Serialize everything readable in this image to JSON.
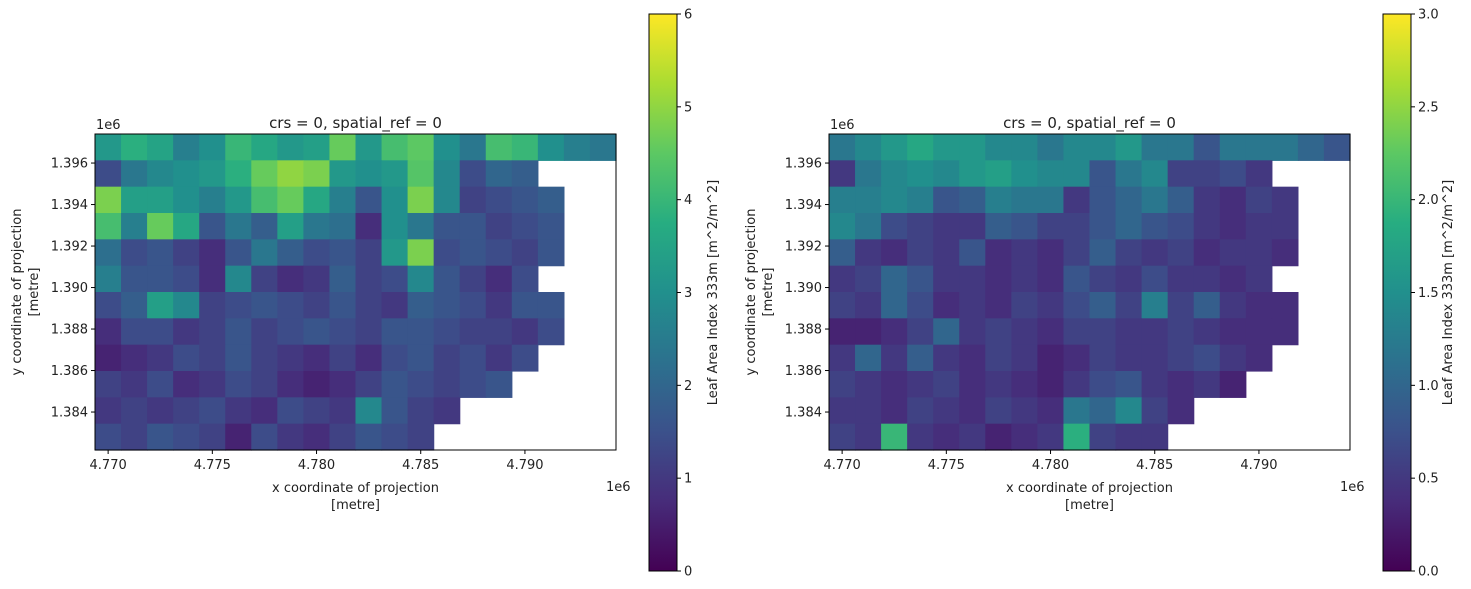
{
  "chart_data": [
    {
      "type": "heatmap",
      "title": "crs = 0, spatial_ref = 0",
      "xlabel": "x coordinate of projection\n[metre]",
      "xlabel_lines": [
        "x coordinate of projection",
        "[metre]"
      ],
      "ylabel_lines": [
        "y coordinate of projection",
        "[metre]"
      ],
      "x_offset_label": "1e6",
      "y_offset_label": "1e6",
      "xlim": [
        4.76937,
        4.79437
      ],
      "ylim": [
        1.38217,
        1.3974
      ],
      "xticks": [
        "4.770",
        "4.775",
        "4.780",
        "4.785",
        "4.790"
      ],
      "xtick_values": [
        4.77,
        4.775,
        4.78,
        4.785,
        4.79
      ],
      "yticks": [
        "1.384",
        "1.386",
        "1.388",
        "1.390",
        "1.392",
        "1.394",
        "1.396"
      ],
      "ytick_values": [
        1.384,
        1.386,
        1.388,
        1.39,
        1.392,
        1.394,
        1.396
      ],
      "colormap": "viridis",
      "colorbar": {
        "label": "Leaf Area Index 333m [m^2/m^2]",
        "range": [
          0,
          6
        ],
        "ticks": [
          "0",
          "1",
          "2",
          "3",
          "4",
          "5",
          "6"
        ],
        "tick_values": [
          0,
          1,
          2,
          3,
          4,
          5,
          6
        ]
      },
      "nan_color": "#ffffff",
      "grid": [
        [
          3.2,
          3.8,
          3.5,
          2.6,
          3.0,
          4.0,
          3.6,
          3.2,
          3.4,
          4.6,
          3.2,
          4.2,
          4.5,
          3.0,
          2.4,
          4.2,
          4.0,
          3.0,
          2.6,
          2.4
        ],
        [
          1.4,
          2.4,
          2.8,
          3.0,
          3.2,
          3.8,
          4.6,
          5.0,
          4.8,
          3.2,
          3.0,
          3.2,
          4.4,
          2.8,
          1.4,
          2.0,
          1.8,
          null,
          null,
          null
        ],
        [
          4.8,
          3.4,
          3.4,
          3.0,
          2.6,
          3.2,
          4.2,
          4.6,
          3.6,
          2.6,
          1.6,
          3.0,
          4.8,
          2.8,
          1.2,
          1.4,
          1.6,
          1.8,
          null,
          null
        ],
        [
          4.2,
          2.6,
          4.6,
          3.6,
          1.6,
          2.4,
          1.8,
          3.4,
          2.4,
          2.2,
          0.8,
          3.0,
          2.4,
          1.6,
          1.6,
          1.2,
          1.4,
          1.6,
          null,
          null
        ],
        [
          2.2,
          1.4,
          1.6,
          1.2,
          0.8,
          1.6,
          2.4,
          1.8,
          1.4,
          1.6,
          1.2,
          3.2,
          4.8,
          1.4,
          1.6,
          1.4,
          1.2,
          1.6,
          null,
          null
        ],
        [
          2.6,
          1.6,
          1.6,
          1.4,
          0.8,
          2.8,
          1.2,
          0.8,
          1.0,
          1.8,
          1.2,
          1.4,
          2.8,
          1.6,
          1.2,
          0.8,
          1.4,
          null,
          null,
          null
        ],
        [
          1.4,
          1.8,
          3.4,
          2.8,
          1.2,
          1.4,
          1.6,
          1.4,
          1.2,
          1.6,
          1.2,
          1.0,
          1.8,
          1.6,
          1.4,
          1.0,
          1.6,
          1.6,
          null,
          null
        ],
        [
          0.8,
          1.4,
          1.4,
          1.0,
          1.2,
          1.6,
          1.2,
          1.4,
          1.6,
          1.4,
          1.2,
          1.6,
          1.6,
          1.4,
          1.2,
          1.2,
          1.0,
          1.4,
          null,
          null
        ],
        [
          0.6,
          0.8,
          1.0,
          1.4,
          1.2,
          1.6,
          1.2,
          1.0,
          0.8,
          1.2,
          0.8,
          1.4,
          1.6,
          1.2,
          1.4,
          1.0,
          1.4,
          null,
          null,
          null
        ],
        [
          1.2,
          1.0,
          1.4,
          0.8,
          1.0,
          1.4,
          1.2,
          0.8,
          0.6,
          0.8,
          1.2,
          1.6,
          1.4,
          1.2,
          1.4,
          1.6,
          null,
          null,
          null,
          null
        ],
        [
          1.0,
          1.2,
          1.0,
          1.2,
          1.4,
          1.0,
          0.8,
          1.4,
          1.2,
          1.0,
          2.8,
          1.6,
          1.2,
          1.0,
          null,
          null,
          null,
          null,
          null,
          null
        ],
        [
          1.4,
          1.2,
          1.6,
          1.4,
          1.2,
          0.6,
          1.4,
          1.0,
          0.8,
          1.2,
          1.6,
          1.4,
          1.2,
          null,
          null,
          null,
          null,
          null,
          null,
          null
        ]
      ]
    },
    {
      "type": "heatmap",
      "title": "crs = 0, spatial_ref = 0",
      "xlabel_lines": [
        "x coordinate of projection",
        "[metre]"
      ],
      "ylabel_lines": [
        "y coordinate of projection",
        "[metre]"
      ],
      "x_offset_label": "1e6",
      "y_offset_label": "1e6",
      "xlim": [
        4.76937,
        4.79437
      ],
      "ylim": [
        1.38217,
        1.3974
      ],
      "xticks": [
        "4.770",
        "4.775",
        "4.780",
        "4.785",
        "4.790"
      ],
      "xtick_values": [
        4.77,
        4.775,
        4.78,
        4.785,
        4.79
      ],
      "yticks": [
        "1.384",
        "1.386",
        "1.388",
        "1.390",
        "1.392",
        "1.394",
        "1.396"
      ],
      "ytick_values": [
        1.384,
        1.386,
        1.388,
        1.39,
        1.392,
        1.394,
        1.396
      ],
      "colormap": "viridis",
      "colorbar": {
        "label": "Leaf Area Index 333m [m^2/m^2]",
        "range": [
          0,
          3
        ],
        "ticks": [
          "0.0",
          "0.5",
          "1.0",
          "1.5",
          "2.0",
          "2.5",
          "3.0"
        ],
        "tick_values": [
          0,
          0.5,
          1.0,
          1.5,
          2.0,
          2.5,
          3.0
        ]
      },
      "nan_color": "#ffffff",
      "grid": [
        [
          1.2,
          1.4,
          1.6,
          1.8,
          1.6,
          1.6,
          1.4,
          1.4,
          1.2,
          1.4,
          1.4,
          1.6,
          1.2,
          1.2,
          0.8,
          1.2,
          1.2,
          1.2,
          1.0,
          0.8
        ],
        [
          0.5,
          1.2,
          1.4,
          1.5,
          1.4,
          1.6,
          1.7,
          1.5,
          1.4,
          1.4,
          0.8,
          1.2,
          1.4,
          0.6,
          0.6,
          0.7,
          0.5,
          null,
          null,
          null
        ],
        [
          1.3,
          1.3,
          1.4,
          1.3,
          0.8,
          0.9,
          1.3,
          1.2,
          1.2,
          0.5,
          0.8,
          1.0,
          1.2,
          0.9,
          0.5,
          0.4,
          0.6,
          0.5,
          null,
          null
        ],
        [
          1.4,
          1.2,
          0.7,
          0.6,
          0.5,
          0.5,
          0.9,
          0.8,
          0.6,
          0.6,
          0.8,
          1.0,
          0.8,
          0.7,
          0.5,
          0.4,
          0.5,
          0.5,
          null,
          null
        ],
        [
          0.9,
          0.5,
          0.4,
          0.6,
          0.5,
          0.8,
          0.4,
          0.5,
          0.4,
          0.6,
          0.9,
          0.6,
          0.5,
          0.6,
          0.4,
          0.5,
          0.5,
          0.4,
          null,
          null
        ],
        [
          0.5,
          0.6,
          1.0,
          0.8,
          0.5,
          0.5,
          0.4,
          0.5,
          0.4,
          0.8,
          0.6,
          0.5,
          0.7,
          0.5,
          0.5,
          0.4,
          0.5,
          null,
          null,
          null
        ],
        [
          0.6,
          0.5,
          1.0,
          0.7,
          0.4,
          0.5,
          0.4,
          0.6,
          0.5,
          0.7,
          0.9,
          0.6,
          1.3,
          0.6,
          0.9,
          0.5,
          0.4,
          0.4,
          null,
          null
        ],
        [
          0.3,
          0.3,
          0.4,
          0.6,
          1.0,
          0.5,
          0.6,
          0.5,
          0.4,
          0.6,
          0.6,
          0.5,
          0.5,
          0.6,
          0.5,
          0.4,
          0.4,
          0.4,
          null,
          null
        ],
        [
          0.5,
          1.0,
          0.5,
          0.9,
          0.5,
          0.4,
          0.6,
          0.5,
          0.3,
          0.4,
          0.6,
          0.5,
          0.5,
          0.6,
          0.7,
          0.5,
          0.4,
          null,
          null,
          null
        ],
        [
          0.6,
          0.5,
          0.4,
          0.5,
          0.6,
          0.4,
          0.5,
          0.4,
          0.3,
          0.5,
          0.7,
          0.8,
          0.5,
          0.4,
          0.5,
          0.3,
          null,
          null,
          null,
          null
        ],
        [
          0.5,
          0.5,
          0.4,
          0.6,
          0.5,
          0.4,
          0.6,
          0.5,
          0.4,
          1.2,
          1.0,
          1.4,
          0.6,
          0.4,
          null,
          null,
          null,
          null,
          null,
          null
        ],
        [
          0.6,
          0.5,
          2.0,
          0.5,
          0.4,
          0.5,
          0.3,
          0.4,
          0.5,
          1.9,
          0.6,
          0.5,
          0.5,
          null,
          null,
          null,
          null,
          null,
          null,
          null
        ]
      ]
    }
  ]
}
